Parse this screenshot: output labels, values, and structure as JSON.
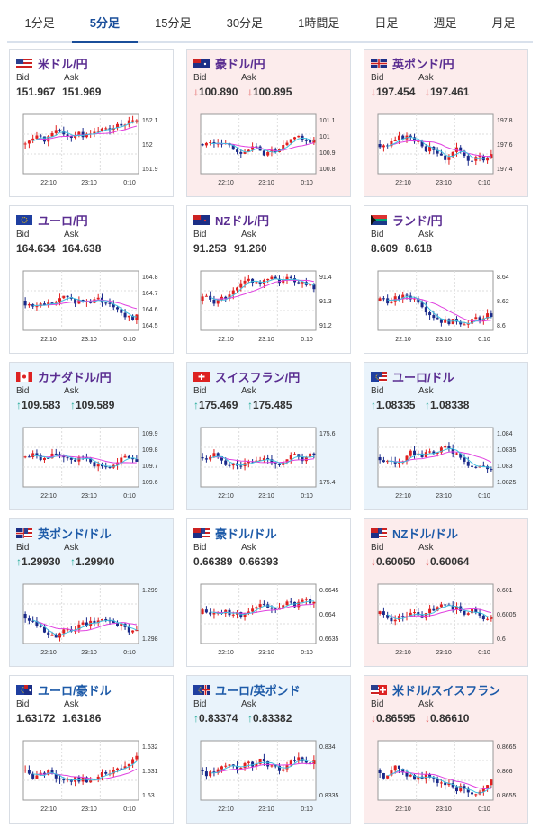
{
  "tabs": [
    "1分足",
    "5分足",
    "15分足",
    "30分足",
    "1時間足",
    "日足",
    "週足",
    "月足"
  ],
  "active_tab": 1,
  "labels": {
    "bid": "Bid",
    "ask": "Ask"
  },
  "x_ticks": [
    "22:10",
    "23:10",
    "0:10"
  ],
  "colors": {
    "up_candle": "#e02020",
    "down_candle": "#1a2a8a",
    "ma_long": "#e040e0",
    "ma_short": "#40c0e0",
    "pair_text": "#5a2d91",
    "pair_text_blue": "#1d5aa8"
  },
  "cards": [
    {
      "pair": "米ドル/円",
      "flag": "us-flag-icon",
      "trend": "none",
      "bid": "151.967",
      "ask": "151.969",
      "y_ticks": [
        "152.1",
        "152",
        "151.9"
      ],
      "seed": 1
    },
    {
      "pair": "豪ドル/円",
      "flag": "au-flag-icon",
      "trend": "down",
      "bid": "100.890",
      "ask": "100.895",
      "y_ticks": [
        "101.1",
        "101",
        "100.9",
        "100.8"
      ],
      "seed": 2
    },
    {
      "pair": "英ポンド/円",
      "flag": "gb-flag-icon",
      "trend": "down",
      "bid": "197.454",
      "ask": "197.461",
      "y_ticks": [
        "197.8",
        "197.6",
        "197.4"
      ],
      "seed": 3
    },
    {
      "pair": "ユーロ/円",
      "flag": "eu-flag-icon",
      "trend": "none",
      "bid": "164.634",
      "ask": "164.638",
      "y_ticks": [
        "164.8",
        "164.7",
        "164.6",
        "164.5"
      ],
      "seed": 4
    },
    {
      "pair": "NZドル/円",
      "flag": "nz-flag-icon",
      "trend": "none",
      "bid": "91.253",
      "ask": "91.260",
      "y_ticks": [
        "91.4",
        "91.3",
        "91.2"
      ],
      "seed": 5
    },
    {
      "pair": "ランド/円",
      "flag": "za-flag-icon",
      "trend": "none",
      "bid": "8.609",
      "ask": "8.618",
      "y_ticks": [
        "8.64",
        "8.62",
        "8.6"
      ],
      "seed": 6
    },
    {
      "pair": "カナダドル/円",
      "flag": "ca-flag-icon",
      "trend": "up",
      "bid": "109.583",
      "ask": "109.589",
      "y_ticks": [
        "109.9",
        "109.8",
        "109.7",
        "109.6"
      ],
      "seed": 7
    },
    {
      "pair": "スイスフラン/円",
      "flag": "ch-flag-icon",
      "trend": "up",
      "bid": "175.469",
      "ask": "175.485",
      "y_ticks": [
        "175.6",
        "175.4"
      ],
      "seed": 8
    },
    {
      "pair": "ユーロ/ドル",
      "flag": "eu-us-flag-icon",
      "trend": "up",
      "bid": "1.08335",
      "ask": "1.08338",
      "y_ticks": [
        "1.084",
        "1.0835",
        "1.083",
        "1.0825"
      ],
      "seed": 9
    },
    {
      "pair": "英ポンド/ドル",
      "flag": "gb-us-flag-icon",
      "trend": "up",
      "bid": "1.29930",
      "ask": "1.29940",
      "y_ticks": [
        "1.299",
        "1.298"
      ],
      "seed": 10
    },
    {
      "pair": "豪ドル/ドル",
      "flag": "au-us-flag-icon",
      "trend": "none",
      "bid": "0.66389",
      "ask": "0.66393",
      "y_ticks": [
        "0.6645",
        "0.664",
        "0.6635"
      ],
      "seed": 11
    },
    {
      "pair": "NZドル/ドル",
      "flag": "nz-us-flag-icon",
      "trend": "down",
      "bid": "0.60050",
      "ask": "0.60064",
      "y_ticks": [
        "0.601",
        "0.6005",
        "0.6"
      ],
      "seed": 12
    },
    {
      "pair": "ユーロ/豪ドル",
      "flag": "eu-au-flag-icon",
      "trend": "none",
      "bid": "1.63172",
      "ask": "1.63186",
      "y_ticks": [
        "1.632",
        "1.631",
        "1.63"
      ],
      "seed": 13
    },
    {
      "pair": "ユーロ/英ポンド",
      "flag": "eu-gb-flag-icon",
      "trend": "up",
      "bid": "0.83374",
      "ask": "0.83382",
      "y_ticks": [
        "0.834",
        "0.8335"
      ],
      "seed": 14
    },
    {
      "pair": "米ドル/スイスフラン",
      "flag": "us-ch-flag-icon",
      "trend": "down",
      "bid": "0.86595",
      "ask": "0.86610",
      "y_ticks": [
        "0.8665",
        "0.866",
        "0.8655"
      ],
      "seed": 15
    }
  ]
}
